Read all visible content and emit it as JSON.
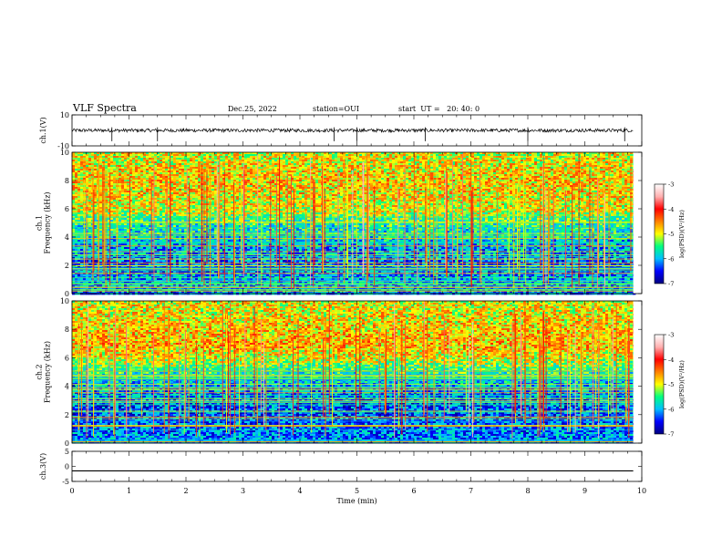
{
  "header": {
    "title": "VLF Spectra",
    "date": "Dec.25, 2022",
    "station": "station=OUI",
    "start_ut": "start  UT =   20: 40: 0"
  },
  "colors": {
    "spec_low": "#0000a0",
    "spec_high": "#ff0000",
    "waveform": "#000000",
    "colorbar_stops": [
      "#000080",
      "#0000ff",
      "#00c0ff",
      "#00ff80",
      "#ffff00",
      "#ff8000",
      "#ff0000",
      "#ffb0b0",
      "#ffffff"
    ]
  },
  "chart_data": [
    {
      "type": "line",
      "panel": "ch1-waveform",
      "ylabel": "ch.1(V)",
      "ylim": [
        -10,
        10
      ],
      "y_tick_labels": [
        "10",
        "-10"
      ],
      "x_range_min": [
        0,
        10
      ],
      "baseline_V": 0,
      "spikes_min": [
        0.7,
        1.5,
        4.6,
        5.0,
        6.2,
        8.0,
        9.7
      ]
    },
    {
      "type": "heatmap",
      "panel": "ch1-spectrogram",
      "ylabel": "ch.1\nFrequency (kHz)",
      "ylim_kHz": [
        0,
        10
      ],
      "y_tick_labels": [
        "0",
        "2",
        "4",
        "6",
        "8",
        "10"
      ],
      "x_range_min": [
        0,
        9.85
      ],
      "colorbar": {
        "label": "log(PSD)(V²/Hz)",
        "range": [
          -7,
          -3
        ],
        "tick_labels": [
          "-3",
          "-4",
          "-5",
          "-6",
          "-7"
        ]
      },
      "intensity_profile_kHz": [
        {
          "f": 0.0,
          "level": -6.2
        },
        {
          "f": 1.0,
          "level": -6.0
        },
        {
          "f": 2.0,
          "level": -6.3
        },
        {
          "f": 3.0,
          "level": -6.1
        },
        {
          "f": 4.0,
          "level": -5.8
        },
        {
          "f": 5.0,
          "level": -5.6
        },
        {
          "f": 6.0,
          "level": -5.0
        },
        {
          "f": 7.0,
          "level": -4.9
        },
        {
          "f": 8.0,
          "level": -4.8
        },
        {
          "f": 9.0,
          "level": -4.9
        },
        {
          "f": 10.0,
          "level": -5.0
        }
      ]
    },
    {
      "type": "heatmap",
      "panel": "ch2-spectrogram",
      "ylabel": "ch.2\nFrequency (kHz)",
      "ylim_kHz": [
        0,
        10
      ],
      "y_tick_labels": [
        "0",
        "2",
        "4",
        "6",
        "8",
        "10"
      ],
      "x_range_min": [
        0,
        9.85
      ],
      "colorbar": {
        "label": "log(PSD)(V²/Hz)",
        "range": [
          -7,
          -3
        ],
        "tick_labels": [
          "-3",
          "-4",
          "-5",
          "-6",
          "-7"
        ]
      },
      "intensity_profile_kHz": [
        {
          "f": 0.0,
          "level": -6.1
        },
        {
          "f": 1.0,
          "level": -6.2
        },
        {
          "f": 2.0,
          "level": -6.3
        },
        {
          "f": 3.0,
          "level": -6.3
        },
        {
          "f": 4.0,
          "level": -6.0
        },
        {
          "f": 5.0,
          "level": -5.6
        },
        {
          "f": 6.0,
          "level": -5.0
        },
        {
          "f": 7.0,
          "level": -4.7
        },
        {
          "f": 8.0,
          "level": -4.8
        },
        {
          "f": 9.0,
          "level": -4.9
        },
        {
          "f": 10.0,
          "level": -5.0
        }
      ]
    },
    {
      "type": "line",
      "panel": "ch3-waveform",
      "ylabel": "ch.3(V)",
      "ylim": [
        -5,
        5
      ],
      "y_tick_labels": [
        "5",
        "0",
        "-5"
      ],
      "x_range_min": [
        0,
        9.85
      ],
      "baseline_V": -1.5
    }
  ],
  "x_axis": {
    "label": "Time (min)",
    "range": [
      0,
      10
    ],
    "tick_labels": [
      "0",
      "1",
      "2",
      "3",
      "4",
      "5",
      "6",
      "7",
      "8",
      "9",
      "10"
    ]
  }
}
